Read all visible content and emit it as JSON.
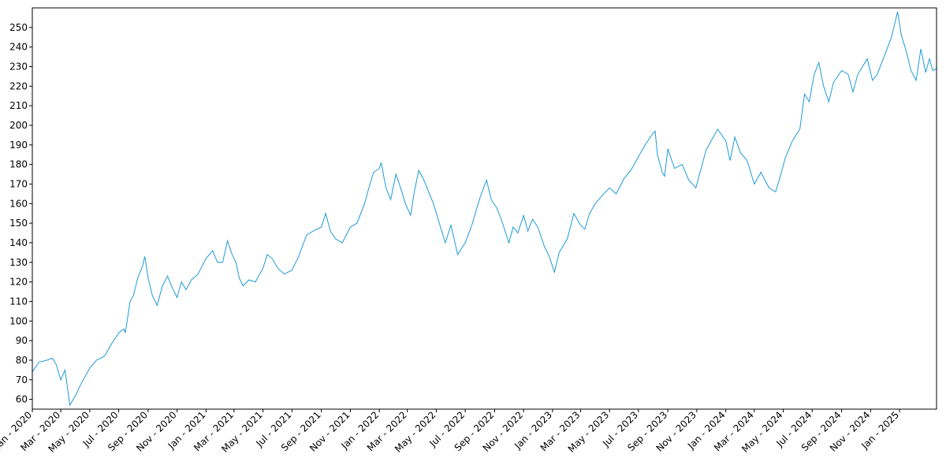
{
  "chart_data": {
    "type": "line",
    "title": "",
    "xlabel": "",
    "ylabel": "",
    "x_range": [
      "2020-01-01",
      "2025-03-20"
    ],
    "ylim": [
      55,
      260
    ],
    "grid": false,
    "legend": "none",
    "line_color": "#1f9ad6",
    "y_ticks": [
      60,
      70,
      80,
      90,
      100,
      110,
      120,
      130,
      140,
      150,
      160,
      170,
      180,
      190,
      200,
      210,
      220,
      230,
      240,
      250
    ],
    "x_ticks": [
      {
        "date": "2020-01-01",
        "label": "Jan - 2020"
      },
      {
        "date": "2020-03-01",
        "label": "Mar - 2020"
      },
      {
        "date": "2020-05-01",
        "label": "May - 2020"
      },
      {
        "date": "2020-07-01",
        "label": "Jul - 2020"
      },
      {
        "date": "2020-09-01",
        "label": "Sep - 2020"
      },
      {
        "date": "2020-11-01",
        "label": "Nov - 2020"
      },
      {
        "date": "2021-01-01",
        "label": "Jan - 2021"
      },
      {
        "date": "2021-03-01",
        "label": "Mar - 2021"
      },
      {
        "date": "2021-05-01",
        "label": "May - 2021"
      },
      {
        "date": "2021-07-01",
        "label": "Jul - 2021"
      },
      {
        "date": "2021-09-01",
        "label": "Sep - 2021"
      },
      {
        "date": "2021-11-01",
        "label": "Nov - 2021"
      },
      {
        "date": "2022-01-01",
        "label": "Jan - 2022"
      },
      {
        "date": "2022-03-01",
        "label": "Mar - 2022"
      },
      {
        "date": "2022-05-01",
        "label": "May - 2022"
      },
      {
        "date": "2022-07-01",
        "label": "Jul - 2022"
      },
      {
        "date": "2022-09-01",
        "label": "Sep - 2022"
      },
      {
        "date": "2022-11-01",
        "label": "Nov - 2022"
      },
      {
        "date": "2023-01-01",
        "label": "Jan - 2023"
      },
      {
        "date": "2023-03-01",
        "label": "Mar - 2023"
      },
      {
        "date": "2023-05-01",
        "label": "May - 2023"
      },
      {
        "date": "2023-07-01",
        "label": "Jul - 2023"
      },
      {
        "date": "2023-09-01",
        "label": "Sep - 2023"
      },
      {
        "date": "2023-11-01",
        "label": "Nov - 2023"
      },
      {
        "date": "2024-01-01",
        "label": "Jan - 2024"
      },
      {
        "date": "2024-03-01",
        "label": "Mar - 2024"
      },
      {
        "date": "2024-05-01",
        "label": "May - 2024"
      },
      {
        "date": "2024-07-01",
        "label": "Jul - 2024"
      },
      {
        "date": "2024-09-01",
        "label": "Sep - 2024"
      },
      {
        "date": "2024-11-01",
        "label": "Nov - 2024"
      },
      {
        "date": "2025-01-01",
        "label": "Jan - 2025"
      }
    ],
    "series": [
      {
        "points": [
          [
            "2020-01-01",
            74
          ],
          [
            "2020-01-15",
            79
          ],
          [
            "2020-02-01",
            80
          ],
          [
            "2020-02-12",
            81
          ],
          [
            "2020-02-20",
            78
          ],
          [
            "2020-03-01",
            70
          ],
          [
            "2020-03-10",
            75
          ],
          [
            "2020-03-20",
            57
          ],
          [
            "2020-04-01",
            62
          ],
          [
            "2020-04-15",
            69
          ],
          [
            "2020-05-01",
            76
          ],
          [
            "2020-05-15",
            80
          ],
          [
            "2020-06-01",
            82
          ],
          [
            "2020-06-15",
            88
          ],
          [
            "2020-07-01",
            94
          ],
          [
            "2020-07-12",
            96
          ],
          [
            "2020-07-15",
            94
          ],
          [
            "2020-07-25",
            110
          ],
          [
            "2020-08-01",
            113
          ],
          [
            "2020-08-10",
            122
          ],
          [
            "2020-08-20",
            128
          ],
          [
            "2020-08-25",
            133
          ],
          [
            "2020-09-01",
            122
          ],
          [
            "2020-09-10",
            113
          ],
          [
            "2020-09-20",
            108
          ],
          [
            "2020-10-01",
            118
          ],
          [
            "2020-10-12",
            123
          ],
          [
            "2020-10-20",
            118
          ],
          [
            "2020-11-01",
            112
          ],
          [
            "2020-11-10",
            120
          ],
          [
            "2020-11-20",
            116
          ],
          [
            "2020-12-01",
            121
          ],
          [
            "2020-12-15",
            124
          ],
          [
            "2021-01-01",
            132
          ],
          [
            "2021-01-15",
            136
          ],
          [
            "2021-01-25",
            130
          ],
          [
            "2021-02-05",
            130
          ],
          [
            "2021-02-15",
            141
          ],
          [
            "2021-02-25",
            134
          ],
          [
            "2021-03-05",
            130
          ],
          [
            "2021-03-12",
            122
          ],
          [
            "2021-03-20",
            118
          ],
          [
            "2021-04-01",
            121
          ],
          [
            "2021-04-15",
            120
          ],
          [
            "2021-05-01",
            127
          ],
          [
            "2021-05-10",
            134
          ],
          [
            "2021-05-20",
            132
          ],
          [
            "2021-06-01",
            127
          ],
          [
            "2021-06-15",
            124
          ],
          [
            "2021-07-01",
            126
          ],
          [
            "2021-07-15",
            133
          ],
          [
            "2021-08-01",
            144
          ],
          [
            "2021-08-15",
            146
          ],
          [
            "2021-09-01",
            148
          ],
          [
            "2021-09-10",
            155
          ],
          [
            "2021-09-20",
            146
          ],
          [
            "2021-10-01",
            142
          ],
          [
            "2021-10-15",
            140
          ],
          [
            "2021-11-01",
            148
          ],
          [
            "2021-11-15",
            150
          ],
          [
            "2021-12-01",
            160
          ],
          [
            "2021-12-10",
            168
          ],
          [
            "2021-12-20",
            176
          ],
          [
            "2022-01-01",
            178
          ],
          [
            "2022-01-05",
            181
          ],
          [
            "2022-01-15",
            168
          ],
          [
            "2022-01-25",
            162
          ],
          [
            "2022-02-05",
            175
          ],
          [
            "2022-02-15",
            168
          ],
          [
            "2022-02-25",
            160
          ],
          [
            "2022-03-08",
            154
          ],
          [
            "2022-03-15",
            165
          ],
          [
            "2022-03-25",
            177
          ],
          [
            "2022-04-05",
            172
          ],
          [
            "2022-04-15",
            166
          ],
          [
            "2022-04-25",
            160
          ],
          [
            "2022-05-10",
            148
          ],
          [
            "2022-05-20",
            140
          ],
          [
            "2022-06-01",
            149
          ],
          [
            "2022-06-15",
            134
          ],
          [
            "2022-07-01",
            140
          ],
          [
            "2022-07-15",
            149
          ],
          [
            "2022-08-01",
            163
          ],
          [
            "2022-08-15",
            172
          ],
          [
            "2022-08-25",
            162
          ],
          [
            "2022-09-05",
            158
          ],
          [
            "2022-09-15",
            152
          ],
          [
            "2022-10-01",
            140
          ],
          [
            "2022-10-10",
            148
          ],
          [
            "2022-10-20",
            145
          ],
          [
            "2022-11-01",
            154
          ],
          [
            "2022-11-10",
            146
          ],
          [
            "2022-11-20",
            152
          ],
          [
            "2022-12-01",
            148
          ],
          [
            "2022-12-15",
            138
          ],
          [
            "2022-12-25",
            133
          ],
          [
            "2023-01-05",
            125
          ],
          [
            "2023-01-15",
            135
          ],
          [
            "2023-02-01",
            142
          ],
          [
            "2023-02-15",
            155
          ],
          [
            "2023-03-01",
            149
          ],
          [
            "2023-03-10",
            147
          ],
          [
            "2023-03-20",
            155
          ],
          [
            "2023-04-01",
            160
          ],
          [
            "2023-04-15",
            164
          ],
          [
            "2023-05-01",
            168
          ],
          [
            "2023-05-15",
            165
          ],
          [
            "2023-06-01",
            173
          ],
          [
            "2023-06-15",
            177
          ],
          [
            "2023-07-01",
            184
          ],
          [
            "2023-07-15",
            190
          ],
          [
            "2023-08-01",
            196
          ],
          [
            "2023-08-05",
            197
          ],
          [
            "2023-08-10",
            185
          ],
          [
            "2023-08-20",
            176
          ],
          [
            "2023-08-25",
            174
          ],
          [
            "2023-09-01",
            188
          ],
          [
            "2023-09-15",
            178
          ],
          [
            "2023-10-01",
            180
          ],
          [
            "2023-10-15",
            172
          ],
          [
            "2023-10-30",
            168
          ],
          [
            "2023-11-10",
            178
          ],
          [
            "2023-11-20",
            187
          ],
          [
            "2023-12-01",
            192
          ],
          [
            "2023-12-15",
            198
          ],
          [
            "2024-01-01",
            192
          ],
          [
            "2024-01-10",
            182
          ],
          [
            "2024-01-20",
            194
          ],
          [
            "2024-02-01",
            186
          ],
          [
            "2024-02-15",
            182
          ],
          [
            "2024-03-01",
            170
          ],
          [
            "2024-03-15",
            176
          ],
          [
            "2024-04-01",
            168
          ],
          [
            "2024-04-15",
            166
          ],
          [
            "2024-04-25",
            174
          ],
          [
            "2024-05-05",
            183
          ],
          [
            "2024-05-20",
            192
          ],
          [
            "2024-06-05",
            198
          ],
          [
            "2024-06-15",
            216
          ],
          [
            "2024-06-25",
            212
          ],
          [
            "2024-07-05",
            226
          ],
          [
            "2024-07-15",
            232
          ],
          [
            "2024-07-25",
            220
          ],
          [
            "2024-08-05",
            212
          ],
          [
            "2024-08-15",
            222
          ],
          [
            "2024-09-01",
            228
          ],
          [
            "2024-09-15",
            226
          ],
          [
            "2024-09-25",
            217
          ],
          [
            "2024-10-05",
            226
          ],
          [
            "2024-10-15",
            230
          ],
          [
            "2024-10-25",
            234
          ],
          [
            "2024-11-05",
            223
          ],
          [
            "2024-11-15",
            226
          ],
          [
            "2024-12-01",
            236
          ],
          [
            "2024-12-15",
            245
          ],
          [
            "2024-12-25",
            255
          ],
          [
            "2024-12-28",
            258
          ],
          [
            "2025-01-05",
            246
          ],
          [
            "2025-01-15",
            238
          ],
          [
            "2025-01-25",
            228
          ],
          [
            "2025-02-05",
            223
          ],
          [
            "2025-02-15",
            239
          ],
          [
            "2025-02-25",
            227
          ],
          [
            "2025-03-05",
            234
          ],
          [
            "2025-03-12",
            228
          ],
          [
            "2025-03-20",
            229
          ]
        ]
      }
    ]
  }
}
